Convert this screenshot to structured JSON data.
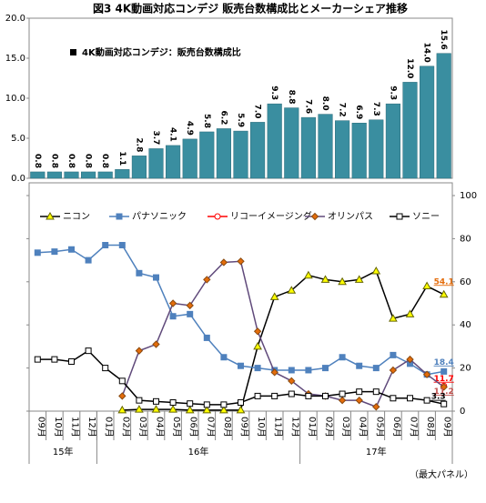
{
  "title": "図3 4K動画対応コンデジ 販売台数構成比とメーカーシェア推移",
  "note": "（最大パネル）",
  "chart_data": [
    {
      "type": "bar",
      "series_name": "4K動画対応コンデジ：販売台数構成比",
      "color": "#3a8ea0",
      "values": [
        0.8,
        0.8,
        0.8,
        0.8,
        0.8,
        1.1,
        2.8,
        3.7,
        4.1,
        4.9,
        5.8,
        6.2,
        5.9,
        7.0,
        9.3,
        8.8,
        7.6,
        8.0,
        7.2,
        6.9,
        7.3,
        9.3,
        12.0,
        14.0,
        15.6
      ],
      "value_labels": [
        "0.8",
        "0.8",
        "0.8",
        "0.8",
        "0.8",
        "1.1",
        "2.8",
        "3.7",
        "4.1",
        "4.9",
        "5.8",
        "6.2",
        "5.9",
        "7.0",
        "9.3",
        "8.8",
        "7.6",
        "8.0",
        "7.2",
        "6.9",
        "7.3",
        "9.3",
        "12.0",
        "14.0",
        "15.6"
      ],
      "ylim": [
        0,
        20
      ],
      "yticks": [
        {
          "value": 0,
          "label": "0.0"
        },
        {
          "value": 5,
          "label": "5.0"
        },
        {
          "value": 10,
          "label": "10.0"
        },
        {
          "value": 15,
          "label": "15.0"
        },
        {
          "value": 20,
          "label": "20.0"
        }
      ]
    },
    {
      "type": "line",
      "categories": [
        "09月",
        "10月",
        "11月",
        "12月",
        "01月",
        "02月",
        "03月",
        "04月",
        "05月",
        "06月",
        "07月",
        "08月",
        "09月",
        "10月",
        "11月",
        "12月",
        "01月",
        "02月",
        "03月",
        "04月",
        "05月",
        "06月",
        "07月",
        "08月",
        "09月"
      ],
      "groups": [
        {
          "label": "15年",
          "span": 4
        },
        {
          "label": "16年",
          "span": 12
        },
        {
          "label": "17年",
          "span": 9
        }
      ],
      "y2lim": [
        0,
        100
      ],
      "y2ticks": [
        0,
        20,
        40,
        60,
        80,
        100
      ],
      "series": [
        {
          "name": "ニコン",
          "color": "#000000",
          "marker": "triangle",
          "marker_color": "#ffff00",
          "axis": "y2",
          "values": [
            null,
            null,
            null,
            null,
            null,
            0.5,
            0.8,
            0.8,
            0.8,
            0.5,
            0.5,
            0.5,
            0.5,
            30,
            53,
            56,
            63,
            61,
            60,
            61,
            65,
            43,
            45,
            58,
            54.1
          ]
        },
        {
          "name": "パナソニック",
          "color": "#4f81bd",
          "marker": "square",
          "marker_color": "#4f81bd",
          "axis": "y2",
          "label_color": "#4f81bd",
          "values": [
            73.5,
            74,
            75,
            70,
            77,
            77,
            64,
            62,
            44,
            45,
            34,
            25,
            21,
            20,
            19,
            19,
            19,
            20,
            25,
            21,
            20,
            26,
            22,
            17,
            18.4
          ]
        },
        {
          "name": "リコーイメージング",
          "color": "#ff0000",
          "marker": "circle",
          "marker_color": "#ffffff",
          "axis": "y2",
          "label_color": "#ff0000",
          "values": [
            null,
            null,
            null,
            null,
            null,
            null,
            null,
            null,
            null,
            null,
            null,
            null,
            null,
            null,
            null,
            null,
            null,
            null,
            null,
            null,
            null,
            null,
            null,
            null,
            11.7
          ]
        },
        {
          "name": "オリンパス",
          "color": "#604a7b",
          "marker": "diamond",
          "marker_color": "#e46c0a",
          "axis": "y2",
          "label_color": "#c0504d",
          "values": [
            null,
            null,
            null,
            null,
            null,
            7,
            28,
            31,
            50,
            49,
            61,
            69,
            69.5,
            37,
            18,
            14,
            8,
            7,
            5,
            5,
            2,
            19,
            24,
            17,
            11.2
          ]
        },
        {
          "name": "ソニー",
          "color": "#000000",
          "marker": "square",
          "marker_color": "#ffffff",
          "axis": "y2",
          "label_color": "#000000",
          "values": [
            24,
            24,
            23,
            28,
            20,
            14,
            5,
            4.5,
            4,
            3.5,
            3,
            3,
            4,
            7,
            7,
            8,
            7,
            7,
            8,
            9,
            9,
            6,
            6,
            5,
            3.3
          ]
        }
      ]
    }
  ]
}
